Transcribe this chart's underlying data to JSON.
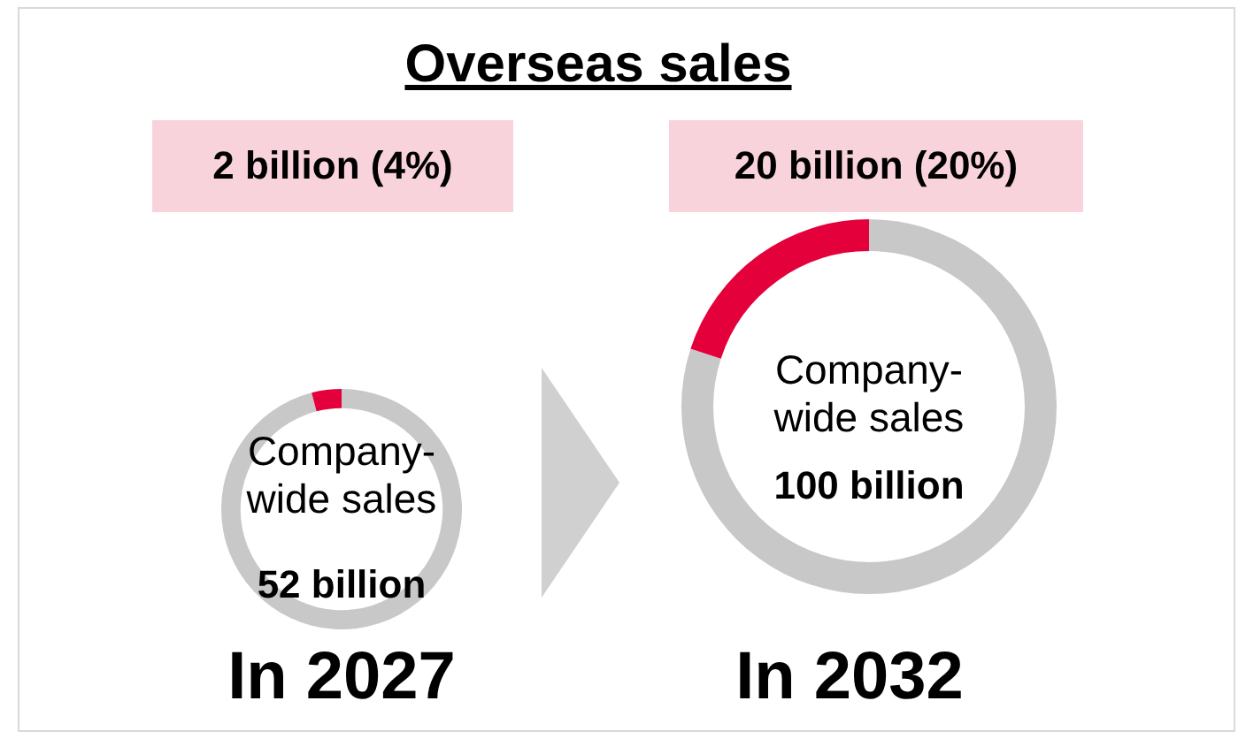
{
  "chart_data": [
    {
      "type": "donut",
      "title": "Overseas sales",
      "categories": [
        null,
        null
      ],
      "values": [
        96,
        4
      ],
      "colors": [
        "#c8c8c8",
        "#e4003b"
      ],
      "annotations": [
        "2 billion (4%)",
        "Company-wide sales",
        "52 billion",
        "In 2027"
      ]
    },
    {
      "type": "donut",
      "categories": [
        null,
        null
      ],
      "values": [
        80,
        20
      ],
      "colors": [
        "#c8c8c8",
        "#e4003b"
      ],
      "annotations": [
        "20 billion (20%)",
        "Company-wide sales",
        "100 billion",
        "In 2032"
      ]
    }
  ]
}
